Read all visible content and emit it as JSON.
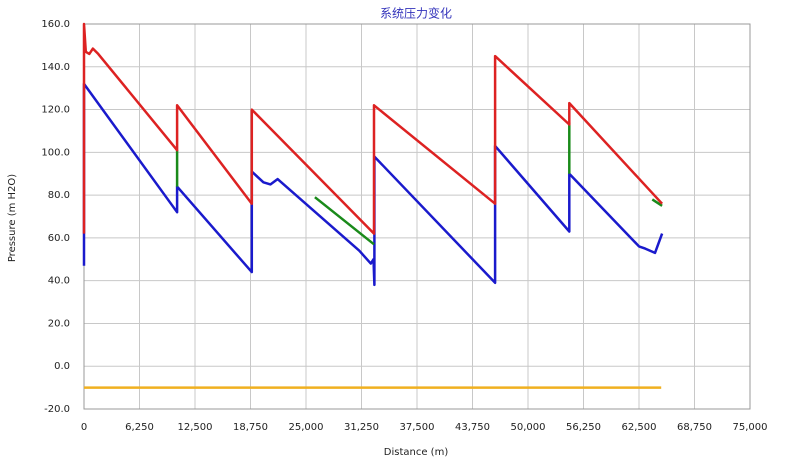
{
  "chart_data": {
    "type": "line",
    "title": "系统压力变化",
    "x_label": "Distance (m)",
    "y_label": "Pressure (m H2O)",
    "xlim": [
      0,
      75000
    ],
    "xticks": [
      0,
      {
        "value": 6250,
        "label": "6,250"
      },
      {
        "value": 12500,
        "label": "12,500"
      },
      {
        "value": 18750,
        "label": "18,750"
      },
      {
        "value": 25000,
        "label": "25,000"
      },
      {
        "value": 31250,
        "label": "31,250"
      },
      {
        "value": 37500,
        "label": "37,500"
      },
      {
        "value": 43750,
        "label": "43,750"
      },
      {
        "value": 50000,
        "label": "50,000"
      },
      {
        "value": 56250,
        "label": "56,250"
      },
      {
        "value": 62500,
        "label": "62,500"
      },
      {
        "value": 68750,
        "label": "68,750"
      },
      {
        "value": 75000,
        "label": "75,000"
      }
    ],
    "ylim": [
      -20,
      160
    ],
    "yticks": [
      {
        "value": -20,
        "label": "-20.0"
      },
      {
        "value": 0,
        "label": "0.0"
      },
      {
        "value": 20,
        "label": "20.0"
      },
      {
        "value": 40,
        "label": "40.0"
      },
      {
        "value": 60,
        "label": "60.0"
      },
      {
        "value": 80,
        "label": "80.0"
      },
      {
        "value": 100,
        "label": "100.0"
      },
      {
        "value": 120,
        "label": "120.0"
      },
      {
        "value": 140,
        "label": "140.0"
      },
      {
        "value": 160,
        "label": "160.0"
      }
    ],
    "grid": true,
    "series": [
      {
        "color": "#1a1acc",
        "x": [
          0,
          0,
          10480,
          10480,
          18900,
          18900,
          20200,
          21000,
          21800,
          31000,
          32300,
          32600,
          32700,
          32700,
          46300,
          46300,
          54650,
          54650,
          62500,
          63200,
          64300,
          65100
        ],
        "values": [
          47,
          132,
          72,
          84,
          44,
          91,
          86,
          85,
          87.5,
          54,
          48,
          50,
          38,
          98,
          39,
          103,
          63,
          90,
          56,
          55,
          53,
          62
        ]
      },
      {
        "color": "#1a8a1a",
        "x": [
          10480,
          10480,
          null,
          26000,
          32660,
          null,
          54650,
          54650,
          null,
          64000,
          65100
        ],
        "values": [
          84,
          101,
          null,
          79,
          57,
          null,
          90,
          114,
          null,
          78,
          75
        ]
      },
      {
        "color": "#dd2222",
        "x": [
          0,
          0,
          200,
          600,
          1000,
          1600,
          10480,
          10480,
          18900,
          18900,
          32660,
          32660,
          46300,
          46300,
          54650,
          54650,
          65100
        ],
        "values": [
          62,
          160,
          147,
          146,
          148.5,
          146,
          101,
          122,
          76,
          120,
          62,
          122,
          76,
          145,
          113,
          123,
          76
        ]
      },
      {
        "color": "#f0b020",
        "x": [
          0,
          65000
        ],
        "values": [
          -10,
          -10
        ]
      }
    ]
  }
}
